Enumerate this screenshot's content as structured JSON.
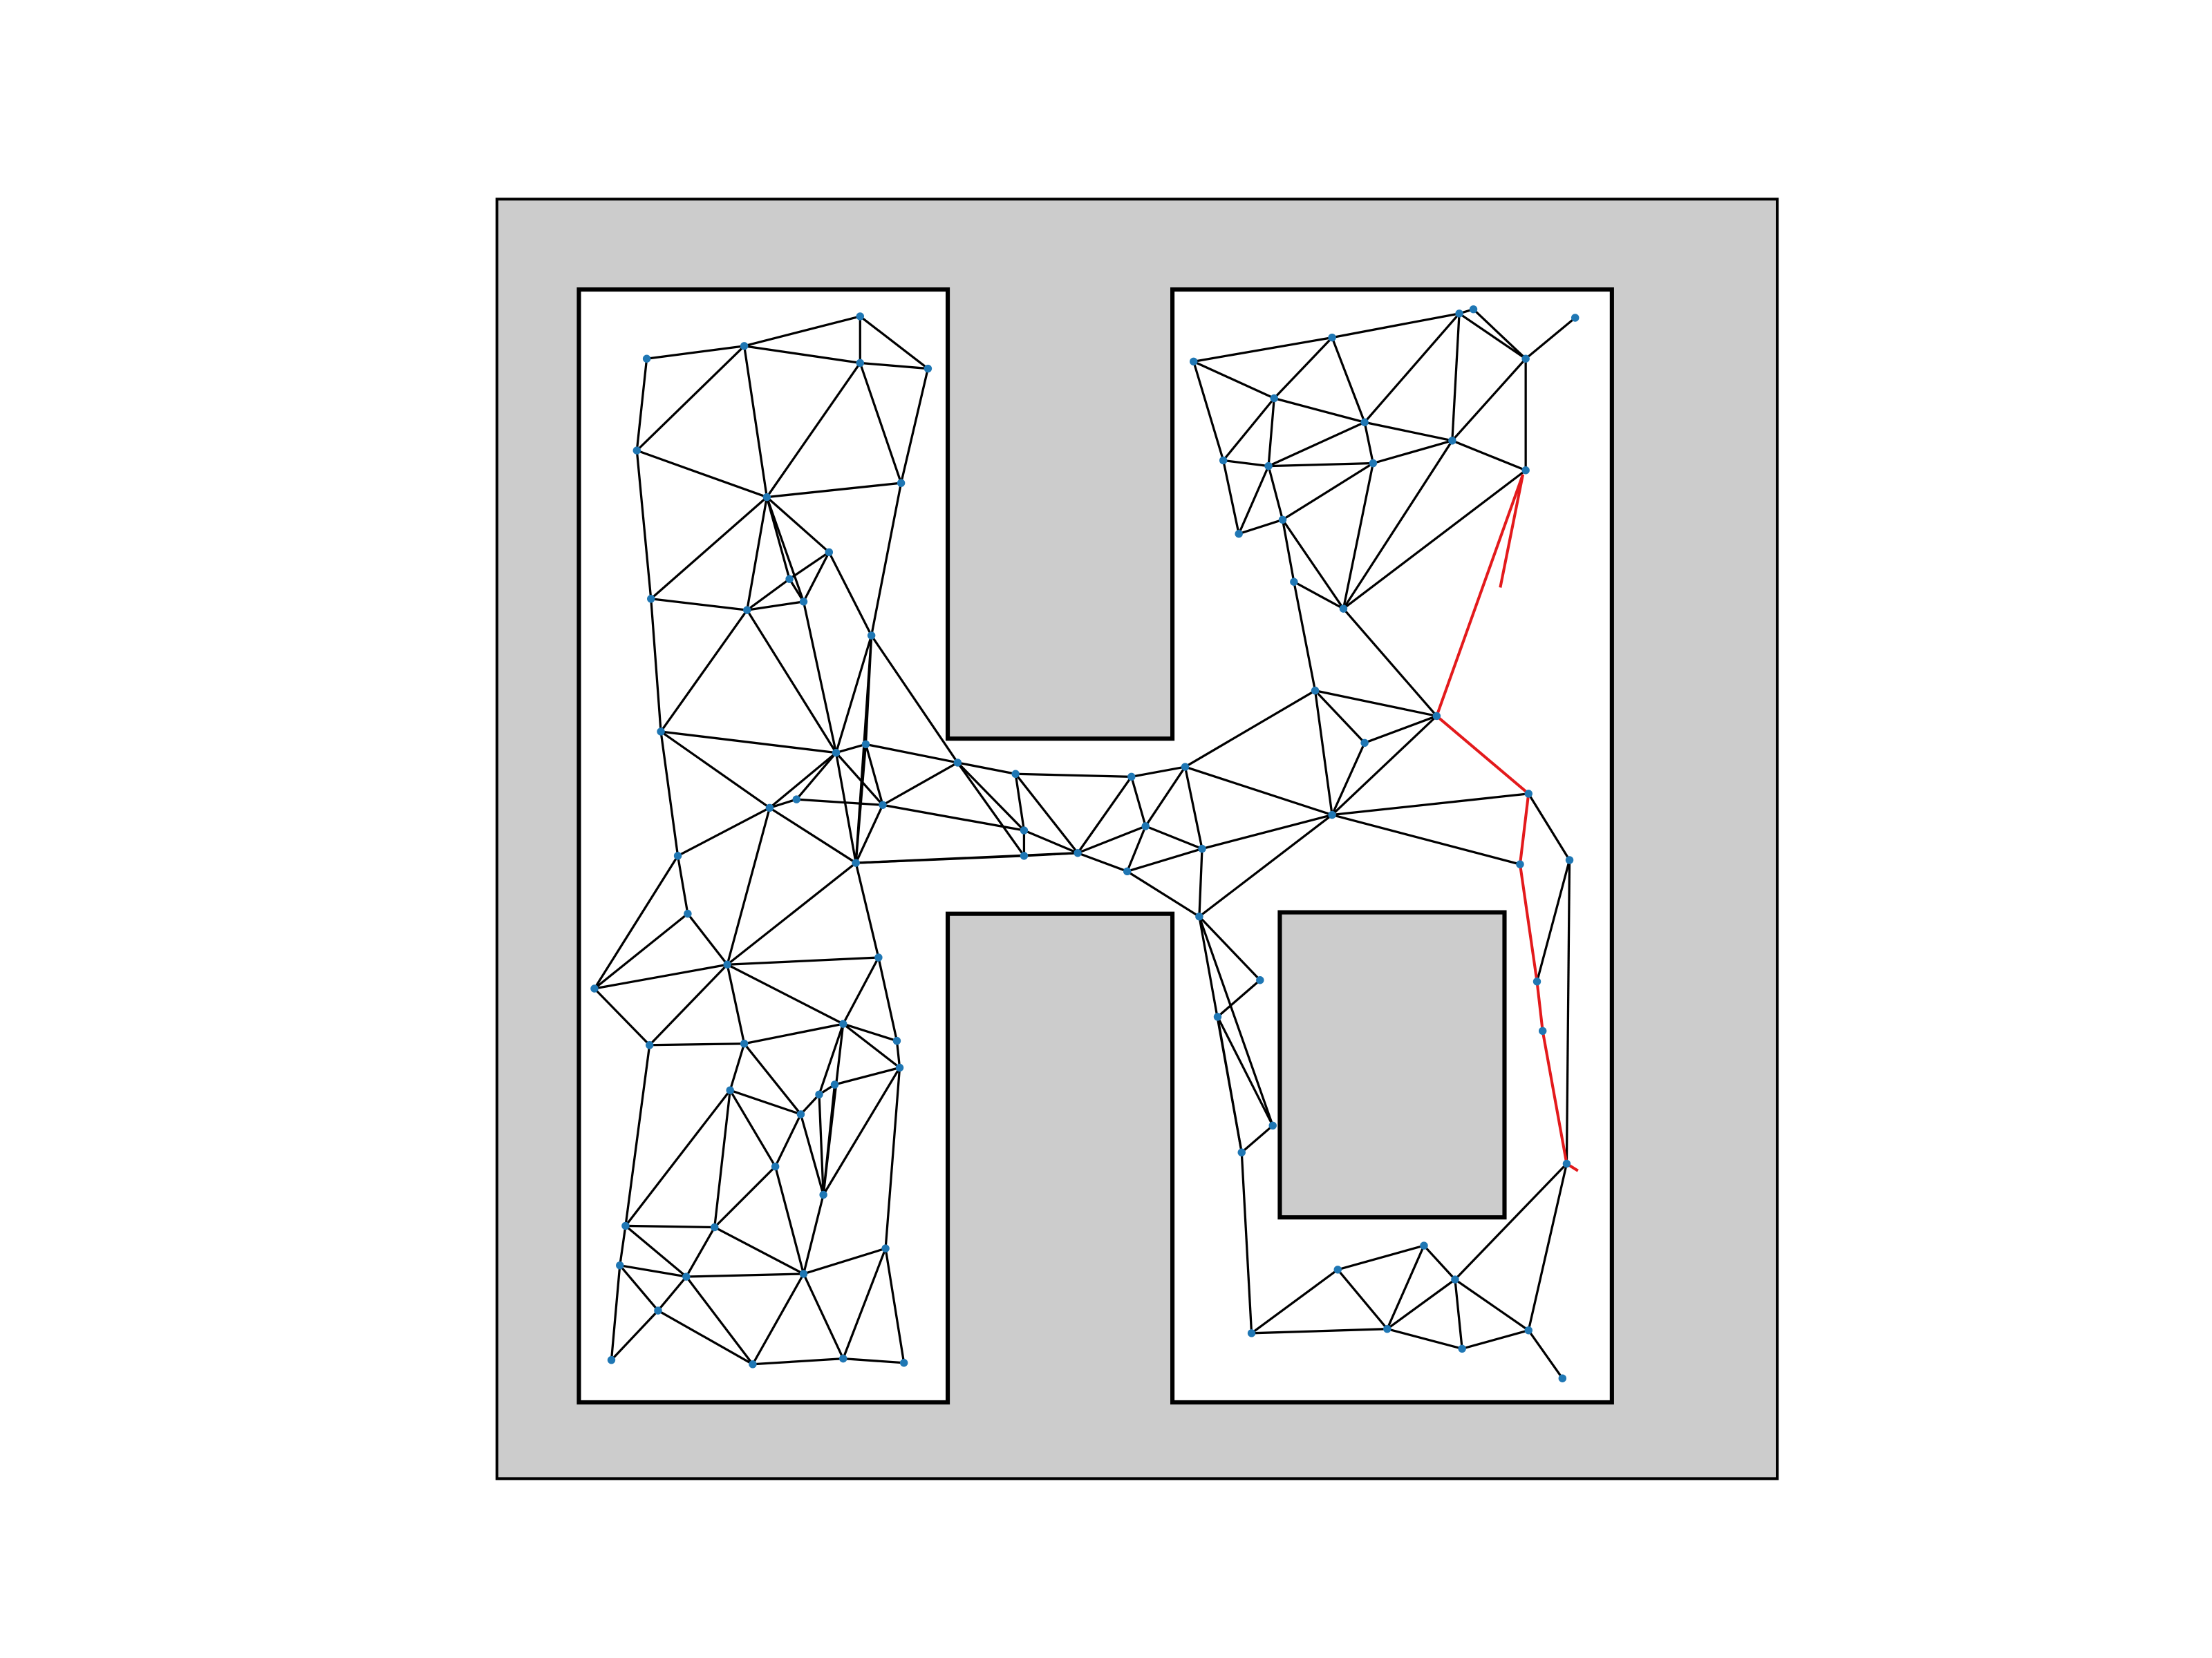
{
  "figure": {
    "title": "",
    "colors": {
      "obstacle_fill": "#cccccc",
      "free_space_fill": "#ffffff",
      "border_stroke": "#000000",
      "roadmap_edge": "#000000",
      "roadmap_node": "#1f77b4",
      "path": "#e31a1c"
    }
  }
}
